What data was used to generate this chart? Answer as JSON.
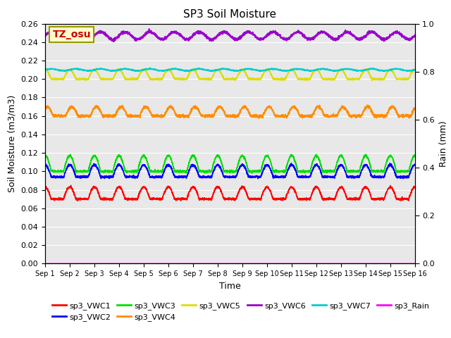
{
  "title": "SP3 Soil Moisture",
  "xlabel": "Time",
  "ylabel_left": "Soil Moisture (m3/m3)",
  "ylabel_right": "Rain (mm)",
  "ylim_left": [
    0.0,
    0.26
  ],
  "ylim_right": [
    0.0,
    1.0
  ],
  "xlim": [
    0,
    15
  ],
  "xtick_labels": [
    "Sep 1",
    "Sep 2",
    "Sep 3",
    "Sep 4",
    "Sep 5",
    "Sep 6",
    "Sep 7",
    "Sep 8",
    "Sep 9",
    "Sep 10",
    "Sep 11",
    "Sep 12",
    "Sep 13",
    "Sep 14",
    "Sep 15",
    "Sep 16"
  ],
  "yticks_left": [
    0.0,
    0.02,
    0.04,
    0.06,
    0.08,
    0.1,
    0.12,
    0.14,
    0.16,
    0.18,
    0.2,
    0.22,
    0.24,
    0.26
  ],
  "yticks_right": [
    0.0,
    0.2,
    0.4,
    0.6,
    0.8,
    1.0
  ],
  "colors": {
    "VWC1": "#ff0000",
    "VWC2": "#0000ff",
    "VWC3": "#00dd00",
    "VWC4": "#ff8c00",
    "VWC5": "#dddd00",
    "VWC6": "#9900cc",
    "VWC7": "#00cccc",
    "Rain": "#ff00ff"
  },
  "legend_labels": [
    "sp3_VWC1",
    "sp3_VWC2",
    "sp3_VWC3",
    "sp3_VWC4",
    "sp3_VWC5",
    "sp3_VWC6",
    "sp3_VWC7",
    "sp3_Rain"
  ],
  "annotation_text": "TZ_osu",
  "annotation_color": "#cc0000",
  "annotation_bg": "#ffffcc",
  "background_color": "#e8e8e8",
  "n_days": 15,
  "n_points": 3000
}
